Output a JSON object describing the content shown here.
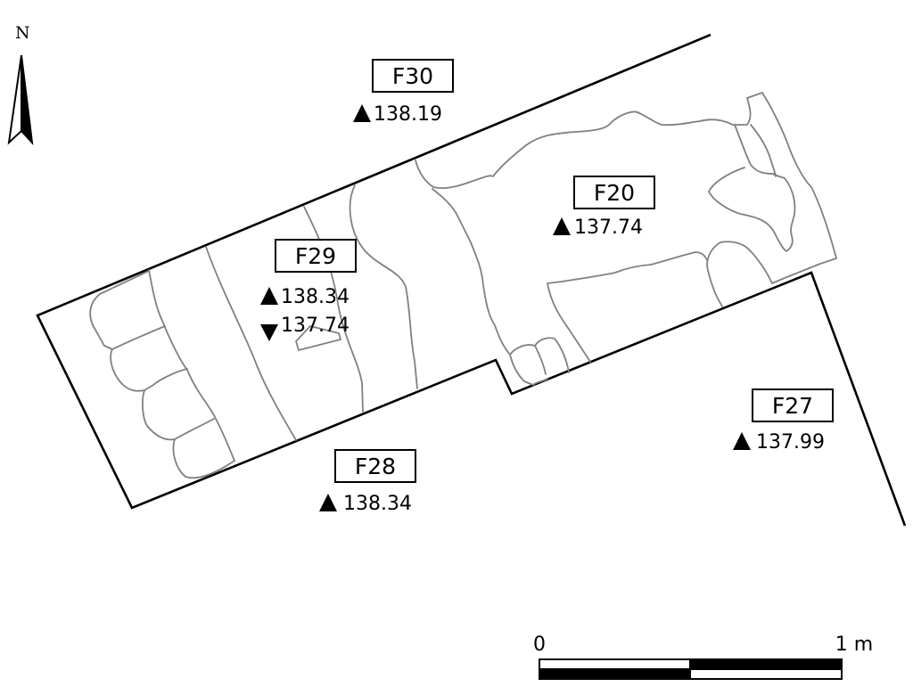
{
  "north": {
    "letter": "N",
    "icon": "north-arrow-icon"
  },
  "features": {
    "f30": {
      "label": "F30",
      "elevations": [
        {
          "marker": "up-triangle",
          "value": "138.19"
        }
      ]
    },
    "f20": {
      "label": "F20",
      "elevations": [
        {
          "marker": "up-triangle",
          "value": "137.74"
        }
      ]
    },
    "f29": {
      "label": "F29",
      "elevations": [
        {
          "marker": "up-triangle",
          "value": "138.34"
        },
        {
          "marker": "down-triangle",
          "value": "137.74"
        }
      ]
    },
    "f28": {
      "label": "F28",
      "elevations": [
        {
          "marker": "up-triangle",
          "value": "138.34"
        }
      ]
    },
    "f27": {
      "label": "F27",
      "elevations": [
        {
          "marker": "up-triangle",
          "value": "137.99"
        }
      ]
    }
  },
  "scale_bar": {
    "start_label": "0",
    "end_label": "1 m"
  },
  "colors": {
    "outline": "#000000",
    "stone": "#808080",
    "background": "#ffffff"
  }
}
